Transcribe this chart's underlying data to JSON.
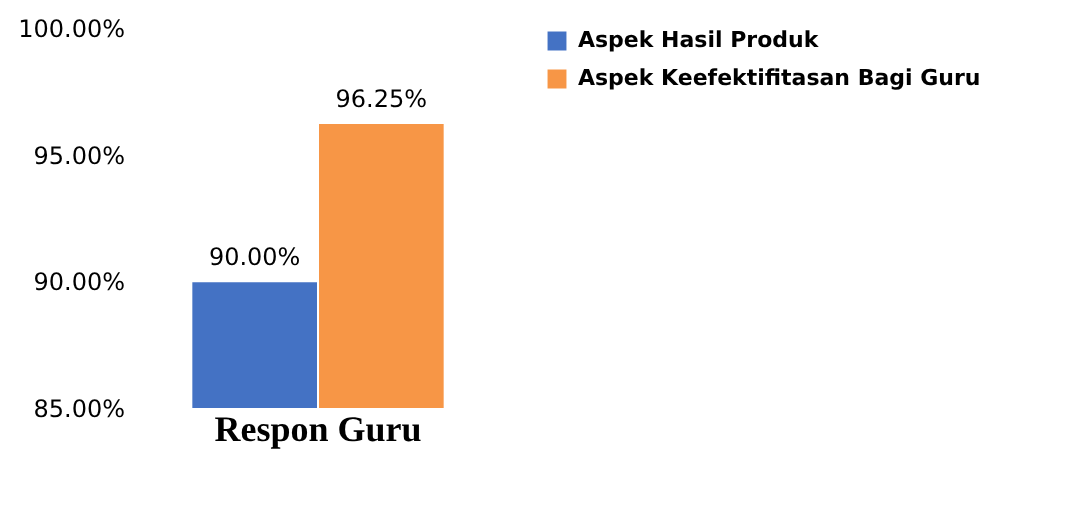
{
  "chart_data": {
    "type": "bar",
    "categories": [
      "Respon Guru"
    ],
    "series": [
      {
        "name": "Aspek Hasil Produk",
        "color": "#4472c4",
        "values": [
          90.0
        ],
        "value_labels": [
          "90.00%"
        ]
      },
      {
        "name": "Aspek Keefektifitasan Bagi Guru",
        "color": "#f79646",
        "values": [
          96.25
        ],
        "value_labels": [
          "96.25%"
        ]
      }
    ],
    "ylim": [
      85,
      100
    ],
    "yticks": [
      {
        "value": 85,
        "label": "85.00%"
      },
      {
        "value": 90,
        "label": "90.00%"
      },
      {
        "value": 95,
        "label": "95.00%"
      },
      {
        "value": 100,
        "label": "100.00%"
      }
    ],
    "grid": false,
    "legend": "right"
  }
}
